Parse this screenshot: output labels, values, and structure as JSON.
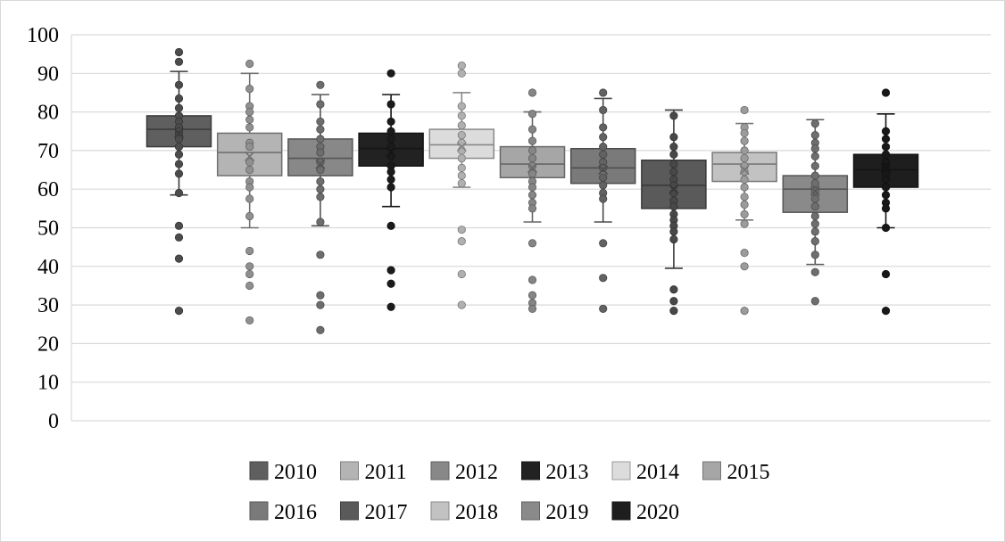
{
  "chart_data": {
    "type": "box",
    "title": "",
    "xlabel": "",
    "ylabel": "",
    "ylim": [
      0,
      100
    ],
    "yticks": [
      0,
      10,
      20,
      30,
      40,
      50,
      60,
      70,
      80,
      90,
      100
    ],
    "grid": "horizontal",
    "legend_position": "bottom",
    "series": [
      {
        "name": "2010",
        "color": "#5f5f5f",
        "whisker_low": 58.5,
        "q1": 71,
        "median": 75.5,
        "q3": 79,
        "whisker_high": 90.5,
        "mean": 74.5,
        "points": [
          95.5,
          93,
          87,
          83.5,
          81,
          79,
          77.5,
          76,
          75,
          74,
          73,
          71,
          69,
          66.5,
          64,
          59,
          50.5,
          47.5,
          42,
          28.5
        ]
      },
      {
        "name": "2011",
        "color": "#b4b4b4",
        "whisker_low": 50,
        "q1": 63.5,
        "median": 69.5,
        "q3": 74.5,
        "whisker_high": 90,
        "mean": 68.5,
        "points": [
          92.5,
          86,
          81.5,
          80,
          78,
          76,
          72,
          71,
          67,
          65,
          62,
          60.5,
          57.5,
          53,
          44,
          40,
          38,
          35,
          26
        ]
      },
      {
        "name": "2012",
        "color": "#888888",
        "whisker_low": 50.5,
        "q1": 63.5,
        "median": 68,
        "q3": 73,
        "whisker_high": 84.5,
        "mean": 66.5,
        "points": [
          87,
          82,
          77.5,
          75.5,
          73,
          71,
          69.5,
          67,
          65,
          62,
          60,
          58,
          51.5,
          43,
          32.5,
          30,
          23.5
        ]
      },
      {
        "name": "2013",
        "color": "#222222",
        "whisker_low": 55.5,
        "q1": 66,
        "median": 70.5,
        "q3": 74.5,
        "whisker_high": 84.5,
        "mean": 69.5,
        "points": [
          90,
          82,
          77.5,
          75,
          73,
          71,
          68.5,
          66,
          64.5,
          62.5,
          60.5,
          50.5,
          39,
          35.5,
          29.5
        ]
      },
      {
        "name": "2014",
        "color": "#dcdcdc",
        "whisker_low": 60.5,
        "q1": 68,
        "median": 71.5,
        "q3": 75.5,
        "whisker_high": 85,
        "mean": 71,
        "points": [
          92,
          90,
          81.5,
          79,
          76.5,
          74,
          72,
          70,
          68,
          65.5,
          63.5,
          61.5,
          49.5,
          46.5,
          38,
          30
        ]
      },
      {
        "name": "2015",
        "color": "#a6a6a6",
        "whisker_low": 51.5,
        "q1": 63,
        "median": 66.5,
        "q3": 71,
        "whisker_high": 80,
        "mean": 65.5,
        "points": [
          85,
          79.5,
          75.5,
          72.5,
          70,
          68,
          66,
          64,
          62,
          60.5,
          58.5,
          56.5,
          55,
          46,
          36.5,
          32.5,
          30.5,
          29
        ]
      },
      {
        "name": "2016",
        "color": "#7a7a7a",
        "whisker_low": 51.5,
        "q1": 61.5,
        "median": 65.5,
        "q3": 70.5,
        "whisker_high": 83.5,
        "mean": 65,
        "points": [
          85,
          80.5,
          76,
          73.5,
          71,
          69,
          67,
          65.5,
          63,
          61,
          59,
          57.5,
          46,
          37,
          29
        ]
      },
      {
        "name": "2017",
        "color": "#5a5a5a",
        "whisker_low": 39.5,
        "q1": 55,
        "median": 61,
        "q3": 67.5,
        "whisker_high": 80.5,
        "mean": 60,
        "points": [
          79,
          73.5,
          71,
          69,
          66.5,
          64.5,
          62.5,
          61,
          59,
          57,
          55.5,
          53.5,
          52,
          50.5,
          49,
          47,
          34,
          31,
          28.5
        ]
      },
      {
        "name": "2018",
        "color": "#c2c2c2",
        "whisker_low": 52,
        "q1": 62,
        "median": 66.5,
        "q3": 69.5,
        "whisker_high": 77,
        "mean": 65,
        "points": [
          80.5,
          76,
          74.5,
          72.5,
          70,
          68,
          66,
          64.5,
          62.5,
          60.5,
          58,
          56,
          53.5,
          51,
          43.5,
          40,
          28.5
        ]
      },
      {
        "name": "2019",
        "color": "#8a8a8a",
        "whisker_low": 40.5,
        "q1": 54,
        "median": 60,
        "q3": 63.5,
        "whisker_high": 78,
        "mean": 59.5,
        "points": [
          77,
          74,
          72,
          70.5,
          68.5,
          66,
          63.5,
          61.5,
          59.5,
          57.5,
          55.5,
          53,
          51,
          49,
          46.5,
          43,
          38.5,
          31
        ]
      },
      {
        "name": "2020",
        "color": "#1e1e1e",
        "whisker_low": 50,
        "q1": 60.5,
        "median": 65,
        "q3": 69,
        "whisker_high": 79.5,
        "mean": 65.5,
        "points": [
          85,
          75,
          73,
          71,
          69,
          67,
          65.5,
          64,
          62.5,
          60.5,
          58.5,
          56.5,
          55,
          50,
          38,
          28.5
        ]
      }
    ]
  }
}
